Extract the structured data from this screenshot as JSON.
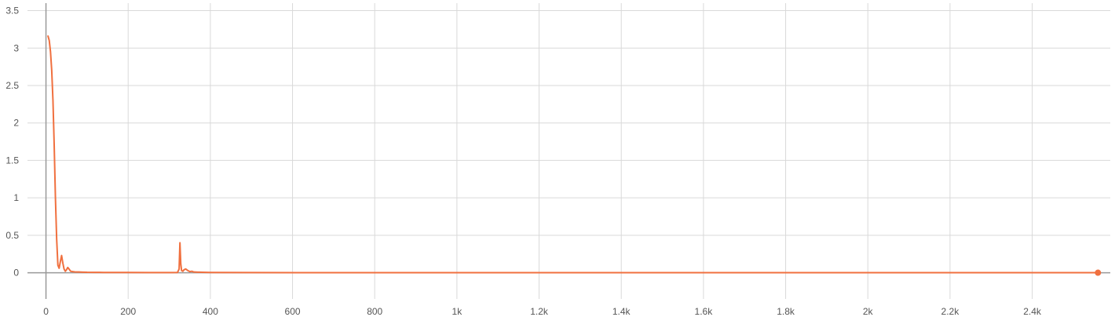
{
  "chart_data": {
    "type": "line",
    "title": "",
    "xlabel": "",
    "ylabel": "",
    "xlim": [
      -45,
      2590
    ],
    "ylim": [
      -0.35,
      3.6
    ],
    "x_ticks": [
      {
        "value": 0,
        "label": "0"
      },
      {
        "value": 200,
        "label": "200"
      },
      {
        "value": 400,
        "label": "400"
      },
      {
        "value": 600,
        "label": "600"
      },
      {
        "value": 800,
        "label": "800"
      },
      {
        "value": 1000,
        "label": "1k"
      },
      {
        "value": 1200,
        "label": "1.2k"
      },
      {
        "value": 1400,
        "label": "1.4k"
      },
      {
        "value": 1600,
        "label": "1.6k"
      },
      {
        "value": 1800,
        "label": "1.8k"
      },
      {
        "value": 2000,
        "label": "2k"
      },
      {
        "value": 2200,
        "label": "2.2k"
      },
      {
        "value": 2400,
        "label": "2.4k"
      }
    ],
    "y_ticks": [
      {
        "value": 0,
        "label": "0"
      },
      {
        "value": 0.5,
        "label": "0.5"
      },
      {
        "value": 1,
        "label": "1"
      },
      {
        "value": 1.5,
        "label": "1.5"
      },
      {
        "value": 2,
        "label": "2"
      },
      {
        "value": 2.5,
        "label": "2.5"
      },
      {
        "value": 3,
        "label": "3"
      },
      {
        "value": 3.5,
        "label": "3.5"
      }
    ],
    "grid": true,
    "colors": {
      "line": "#f0703f",
      "grid": "#d9d9d9",
      "axis": "#999999",
      "tick_text": "#555555"
    },
    "series": [
      {
        "x": [
          5,
          8,
          11,
          14,
          17,
          20,
          23,
          26,
          29,
          32,
          35,
          38,
          41,
          44,
          47,
          50,
          53,
          56,
          60,
          65,
          70,
          80,
          90,
          100,
          120,
          140,
          160,
          200,
          250,
          300,
          320,
          324,
          326,
          328,
          330,
          333,
          336,
          340,
          345,
          350,
          355,
          360,
          370,
          380,
          400,
          500,
          700,
          1000,
          1300,
          1600,
          1900,
          2200,
          2400,
          2560
        ],
        "y": [
          3.16,
          3.1,
          2.95,
          2.7,
          2.3,
          1.7,
          1.0,
          0.45,
          0.1,
          0.06,
          0.15,
          0.23,
          0.13,
          0.05,
          0.02,
          0.04,
          0.07,
          0.05,
          0.02,
          0.015,
          0.012,
          0.01,
          0.008,
          0.006,
          0.005,
          0.004,
          0.003,
          0.003,
          0.002,
          0.002,
          0.003,
          0.05,
          0.4,
          0.12,
          0.03,
          0.02,
          0.04,
          0.05,
          0.03,
          0.015,
          0.02,
          0.01,
          0.008,
          0.006,
          0.004,
          0.002,
          0.001,
          0.001,
          0.001,
          0.0008,
          0.0006,
          0.0005,
          0.0005,
          0.0005
        ]
      }
    ],
    "end_marker": {
      "x": 2560,
      "y": 0.0005
    }
  }
}
